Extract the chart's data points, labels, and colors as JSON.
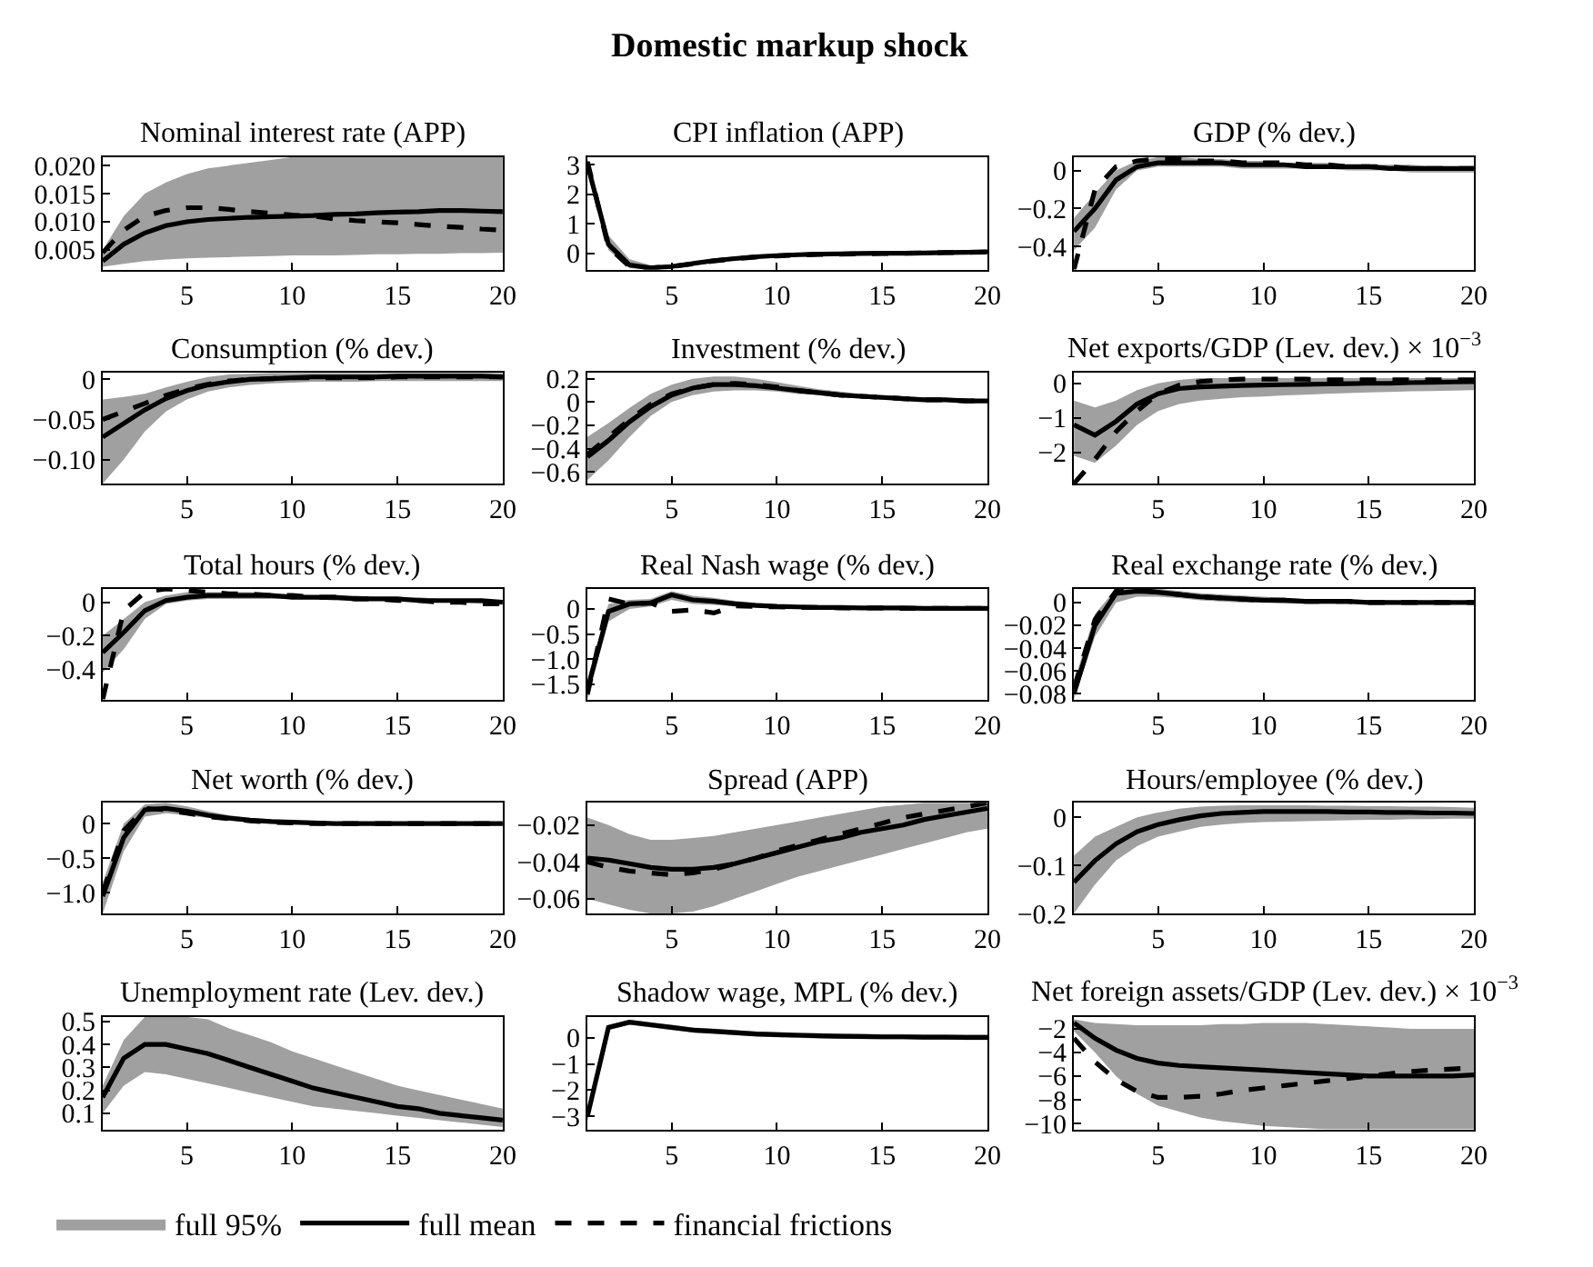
{
  "chart_data": [
    {
      "type": "line",
      "title": "Nominal interest rate (APP)",
      "annotations": [
        "Domestic markup shock"
      ],
      "x": [
        1,
        2,
        3,
        4,
        5,
        6,
        7,
        8,
        9,
        10,
        11,
        12,
        13,
        14,
        15,
        16,
        17,
        18,
        19,
        20
      ],
      "xlim": [
        1,
        20
      ],
      "xticks": [
        5,
        10,
        15,
        20
      ],
      "ylim": [
        0.0015,
        0.0215
      ],
      "yticks": [
        {
          "value": 0.005,
          "label": "0.005"
        },
        {
          "value": 0.01,
          "label": "0.010"
        },
        {
          "value": 0.015,
          "label": "0.015"
        },
        {
          "value": 0.02,
          "label": "0.020"
        }
      ],
      "series": [
        {
          "color": "#000000",
          "line_style": "solid",
          "values": [
            0.003,
            0.006,
            0.008,
            0.0093,
            0.01,
            0.0104,
            0.0106,
            0.0108,
            0.0109,
            0.011,
            0.0111,
            0.0113,
            0.0114,
            0.0116,
            0.0117,
            0.0118,
            0.012,
            0.012,
            0.0119,
            0.0118
          ],
          "lower": [
            0.002,
            0.0025,
            0.003,
            0.0033,
            0.0035,
            0.0036,
            0.0037,
            0.0038,
            0.0039,
            0.004,
            0.004,
            0.004,
            0.0041,
            0.0042,
            0.0042,
            0.0043,
            0.0043,
            0.0044,
            0.0044,
            0.0045
          ],
          "upper": [
            0.005,
            0.011,
            0.015,
            0.017,
            0.0185,
            0.0195,
            0.02,
            0.0205,
            0.021,
            0.0215,
            0.0215,
            0.0215,
            0.0215,
            0.0215,
            0.0215,
            0.0215,
            0.0215,
            0.0215,
            0.0215,
            0.0215
          ]
        },
        {
          "color": "#000000",
          "line_style": "dashed",
          "values": [
            0.0045,
            0.0085,
            0.011,
            0.012,
            0.0125,
            0.0125,
            0.0122,
            0.0118,
            0.0115,
            0.0112,
            0.011,
            0.0105,
            0.0102,
            0.01,
            0.0098,
            0.0095,
            0.0092,
            0.009,
            0.0087,
            0.0085
          ]
        }
      ]
    },
    {
      "type": "line",
      "title": "CPI inflation (APP)",
      "x": [
        1,
        2,
        3,
        4,
        5,
        6,
        7,
        8,
        9,
        10,
        11,
        12,
        13,
        14,
        15,
        16,
        17,
        18,
        19,
        20
      ],
      "xlim": [
        1,
        20
      ],
      "xticks": [
        5,
        10,
        15,
        20
      ],
      "ylim": [
        -0.55,
        3.25
      ],
      "yticks": [
        0,
        1,
        2,
        3
      ],
      "series": [
        {
          "color": "#000000",
          "line_style": "solid",
          "values": [
            3,
            0.3,
            -0.4,
            -0.5,
            -0.45,
            -0.35,
            -0.25,
            -0.18,
            -0.12,
            -0.08,
            -0.05,
            -0.03,
            -0.02,
            -0.01,
            0,
            0,
            0.01,
            0.02,
            0.03,
            0.05
          ],
          "lower": [
            2.8,
            0.1,
            -0.5,
            -0.55,
            -0.5,
            -0.42,
            -0.32,
            -0.25,
            -0.19,
            -0.15,
            -0.12,
            -0.1,
            -0.08,
            -0.07,
            -0.06,
            -0.05,
            -0.04,
            -0.03,
            -0.02,
            -0.01
          ],
          "upper": [
            3.2,
            0.6,
            -0.2,
            -0.4,
            -0.38,
            -0.28,
            -0.18,
            -0.11,
            -0.05,
            -0.01,
            0.02,
            0.04,
            0.05,
            0.06,
            0.07,
            0.07,
            0.08,
            0.09,
            0.1,
            0.1
          ]
        },
        {
          "color": "#000000",
          "line_style": "dashed",
          "values": [
            3.1,
            0.2,
            -0.45,
            -0.5,
            -0.45,
            -0.36,
            -0.26,
            -0.19,
            -0.13,
            -0.09,
            -0.06,
            -0.04,
            -0.03,
            -0.02,
            -0.01,
            0,
            0.01,
            0.02,
            0.03,
            0.04
          ]
        }
      ]
    },
    {
      "type": "line",
      "title": "GDP (% dev.)",
      "x": [
        1,
        2,
        3,
        4,
        5,
        6,
        7,
        8,
        9,
        10,
        11,
        12,
        13,
        14,
        15,
        16,
        17,
        18,
        19,
        20
      ],
      "xlim": [
        1,
        20
      ],
      "xticks": [
        5,
        10,
        15,
        20
      ],
      "ylim": [
        -0.52,
        0.07
      ],
      "yticks": [
        {
          "value": -0.4,
          "label": "−0.4"
        },
        {
          "value": -0.2,
          "label": "−0.2"
        },
        0
      ],
      "series": [
        {
          "color": "#000000",
          "line_style": "solid",
          "values": [
            -0.32,
            -0.2,
            -0.05,
            0.02,
            0.04,
            0.04,
            0.04,
            0.04,
            0.03,
            0.03,
            0.03,
            0.02,
            0.02,
            0.02,
            0.02,
            0.01,
            0.01,
            0.01,
            0.01,
            0.01
          ],
          "lower": [
            -0.42,
            -0.3,
            -0.1,
            0,
            0.02,
            0.02,
            0.02,
            0.02,
            0.01,
            0.01,
            0.01,
            0.01,
            0.01,
            0,
            0,
            0,
            -0.01,
            -0.01,
            -0.01,
            -0.01
          ],
          "upper": [
            -0.25,
            -0.12,
            0,
            0.05,
            0.07,
            0.07,
            0.06,
            0.06,
            0.05,
            0.05,
            0.04,
            0.04,
            0.04,
            0.03,
            0.03,
            0.03,
            0.03,
            0.02,
            0.02,
            0.02
          ]
        },
        {
          "color": "#000000",
          "line_style": "dashed",
          "values": [
            -0.52,
            -0.1,
            0.02,
            0.05,
            0.06,
            0.06,
            0.05,
            0.05,
            0.04,
            0.04,
            0.04,
            0.03,
            0.03,
            0.02,
            0.02,
            0.02,
            0.01,
            0.01,
            0.01,
            0.01
          ]
        }
      ]
    },
    {
      "type": "line",
      "title": "Consumption (% dev.)",
      "x": [
        1,
        2,
        3,
        4,
        5,
        6,
        7,
        8,
        9,
        10,
        11,
        12,
        13,
        14,
        15,
        16,
        17,
        18,
        19,
        20
      ],
      "xlim": [
        1,
        20
      ],
      "xticks": [
        5,
        10,
        15,
        20
      ],
      "ylim": [
        -0.13,
        0.008
      ],
      "yticks": [
        {
          "value": -0.1,
          "label": "−0.10"
        },
        {
          "value": -0.05,
          "label": "−0.05"
        },
        0
      ],
      "series": [
        {
          "color": "#000000",
          "line_style": "solid",
          "values": [
            -0.072,
            -0.055,
            -0.038,
            -0.024,
            -0.014,
            -0.007,
            -0.003,
            0,
            0.001,
            0.002,
            0.003,
            0.003,
            0.003,
            0.003,
            0.004,
            0.004,
            0.004,
            0.004,
            0.004,
            0.003
          ],
          "lower": [
            -0.13,
            -0.1,
            -0.065,
            -0.04,
            -0.025,
            -0.015,
            -0.01,
            -0.007,
            -0.005,
            -0.004,
            -0.003,
            -0.003,
            -0.003,
            -0.002,
            -0.002,
            -0.002,
            -0.002,
            -0.002,
            -0.002,
            -0.002
          ],
          "upper": [
            -0.025,
            -0.022,
            -0.018,
            -0.01,
            -0.003,
            0.003,
            0.006,
            0.007,
            0.008,
            0.008,
            0.008,
            0.008,
            0.008,
            0.008,
            0.008,
            0.008,
            0.008,
            0.008,
            0.008,
            0.008
          ]
        },
        {
          "color": "#000000",
          "line_style": "dashed",
          "values": [
            -0.05,
            -0.04,
            -0.03,
            -0.02,
            -0.012,
            -0.006,
            -0.002,
            0,
            0.001,
            0.002,
            0.002,
            0.002,
            0.002,
            0.002,
            0.003,
            0.003,
            0.003,
            0.003,
            0.003,
            0.003
          ]
        }
      ]
    },
    {
      "type": "line",
      "title": "Investment (% dev.)",
      "x": [
        1,
        2,
        3,
        4,
        5,
        6,
        7,
        8,
        9,
        10,
        11,
        12,
        13,
        14,
        15,
        16,
        17,
        18,
        19,
        20
      ],
      "xlim": [
        1,
        20
      ],
      "xticks": [
        5,
        10,
        15,
        20
      ],
      "ylim": [
        -0.7,
        0.25
      ],
      "yticks": [
        {
          "value": -0.6,
          "label": "−0.6"
        },
        {
          "value": -0.4,
          "label": "−0.4"
        },
        {
          "value": -0.2,
          "label": "−0.2"
        },
        0,
        0.2
      ],
      "series": [
        {
          "color": "#000000",
          "line_style": "solid",
          "values": [
            -0.47,
            -0.33,
            -0.17,
            -0.04,
            0.06,
            0.12,
            0.15,
            0.15,
            0.14,
            0.12,
            0.1,
            0.08,
            0.06,
            0.05,
            0.04,
            0.03,
            0.02,
            0.02,
            0.01,
            0.01
          ],
          "lower": [
            -0.67,
            -0.5,
            -0.3,
            -0.12,
            0,
            0.06,
            0.09,
            0.1,
            0.1,
            0.09,
            0.07,
            0.06,
            0.04,
            0.03,
            0.02,
            0.02,
            0.01,
            0.01,
            0,
            0
          ],
          "upper": [
            -0.3,
            -0.18,
            -0.05,
            0.07,
            0.15,
            0.2,
            0.22,
            0.22,
            0.2,
            0.17,
            0.14,
            0.11,
            0.09,
            0.07,
            0.06,
            0.05,
            0.04,
            0.03,
            0.03,
            0.02
          ]
        },
        {
          "color": "#000000",
          "line_style": "dashed",
          "values": [
            -0.45,
            -0.3,
            -0.15,
            -0.02,
            0.07,
            0.12,
            0.15,
            0.16,
            0.15,
            0.13,
            0.1,
            0.08,
            0.06,
            0.05,
            0.04,
            0.03,
            0.02,
            0.02,
            0.01,
            0.01
          ]
        }
      ]
    },
    {
      "type": "line",
      "title": "Net exports/GDP (Lev. dev.) × 10$^{−3}$",
      "x": [
        1,
        2,
        3,
        4,
        5,
        6,
        7,
        8,
        9,
        10,
        11,
        12,
        13,
        14,
        15,
        16,
        17,
        18,
        19,
        20
      ],
      "xlim": [
        1,
        20
      ],
      "xticks": [
        5,
        10,
        15,
        20
      ],
      "ylim": [
        -2.9,
        0.3
      ],
      "yticks": [
        {
          "value": -2,
          "label": "−2"
        },
        {
          "value": -1,
          "label": "−1"
        },
        0
      ],
      "series": [
        {
          "color": "#000000",
          "line_style": "solid",
          "values": [
            -1.2,
            -1.5,
            -1.1,
            -0.6,
            -0.3,
            -0.15,
            -0.1,
            -0.08,
            -0.06,
            -0.05,
            -0.04,
            -0.03,
            -0.02,
            -0.01,
            0,
            0,
            0.02,
            0.03,
            0.04,
            0.05
          ],
          "lower": [
            -2.1,
            -2.3,
            -1.8,
            -1.2,
            -0.8,
            -0.6,
            -0.5,
            -0.45,
            -0.4,
            -0.38,
            -0.35,
            -0.33,
            -0.3,
            -0.28,
            -0.26,
            -0.25,
            -0.23,
            -0.22,
            -0.21,
            -0.2
          ],
          "upper": [
            -0.5,
            -0.7,
            -0.5,
            -0.2,
            0,
            0.1,
            0.15,
            0.15,
            0.15,
            0.15,
            0.15,
            0.15,
            0.15,
            0.15,
            0.15,
            0.15,
            0.15,
            0.15,
            0.15,
            0.15
          ]
        },
        {
          "color": "#000000",
          "line_style": "dashed",
          "values": [
            -2.9,
            -2.2,
            -1.4,
            -0.8,
            -0.3,
            -0.05,
            0.05,
            0.1,
            0.12,
            0.12,
            0.12,
            0.12,
            0.1,
            0.1,
            0.1,
            0.1,
            0.1,
            0.1,
            0.1,
            0.1
          ]
        }
      ]
    },
    {
      "type": "line",
      "title": "Total hours (% dev.)",
      "x": [
        1,
        2,
        3,
        4,
        5,
        6,
        7,
        8,
        9,
        10,
        11,
        12,
        13,
        14,
        15,
        16,
        17,
        18,
        19,
        20
      ],
      "xlim": [
        1,
        20
      ],
      "xticks": [
        5,
        10,
        15,
        20
      ],
      "ylim": [
        -0.58,
        0.08
      ],
      "yticks": [
        {
          "value": -0.4,
          "label": "−0.4"
        },
        {
          "value": -0.2,
          "label": "−0.2"
        },
        0
      ],
      "series": [
        {
          "color": "#000000",
          "line_style": "solid",
          "values": [
            -0.3,
            -0.18,
            -0.05,
            0.01,
            0.03,
            0.04,
            0.04,
            0.04,
            0.04,
            0.03,
            0.03,
            0.03,
            0.02,
            0.02,
            0.02,
            0.01,
            0.01,
            0.01,
            0.01,
            0
          ],
          "lower": [
            -0.42,
            -0.28,
            -0.1,
            -0.01,
            0.01,
            0.02,
            0.02,
            0.02,
            0.02,
            0.02,
            0.02,
            0.01,
            0.01,
            0.01,
            0.01,
            0,
            0,
            0,
            -0.01,
            -0.01
          ],
          "upper": [
            -0.2,
            -0.1,
            0,
            0.04,
            0.06,
            0.06,
            0.06,
            0.06,
            0.05,
            0.05,
            0.04,
            0.04,
            0.04,
            0.03,
            0.03,
            0.03,
            0.02,
            0.02,
            0.02,
            0.01
          ]
        },
        {
          "color": "#000000",
          "line_style": "dashed",
          "values": [
            -0.58,
            -0.05,
            0.06,
            0.08,
            0.07,
            0.06,
            0.05,
            0.05,
            0.04,
            0.04,
            0.03,
            0.03,
            0.02,
            0.02,
            0.01,
            0.01,
            0,
            0,
            -0.01,
            -0.01
          ]
        }
      ]
    },
    {
      "type": "line",
      "title": "Real Nash wage (% dev.)",
      "x": [
        1,
        2,
        3,
        4,
        5,
        6,
        7,
        8,
        9,
        10,
        11,
        12,
        13,
        14,
        15,
        16,
        17,
        18,
        19,
        20
      ],
      "xlim": [
        1,
        20
      ],
      "xticks": [
        5,
        10,
        15,
        20
      ],
      "ylim": [
        -1.8,
        0.4
      ],
      "yticks": [
        {
          "value": -1.5,
          "label": "−1.5"
        },
        {
          "value": -1,
          "label": "−1.0"
        },
        {
          "value": -0.5,
          "label": "−0.5"
        },
        0
      ],
      "series": [
        {
          "color": "#000000",
          "line_style": "solid",
          "values": [
            -1.6,
            -0.05,
            0.1,
            0.12,
            0.28,
            0.18,
            0.15,
            0.1,
            0.07,
            0.05,
            0.04,
            0.03,
            0.03,
            0.02,
            0.02,
            0.02,
            0.01,
            0.01,
            0.01,
            0.01
          ],
          "lower": [
            -1.8,
            -0.25,
            0,
            0.05,
            0.18,
            0.1,
            0.08,
            0.05,
            0.03,
            0.02,
            0.01,
            0,
            0,
            0,
            0,
            0,
            -0.01,
            -0.01,
            -0.01,
            -0.01
          ],
          "upper": [
            -1.4,
            0.1,
            0.18,
            0.2,
            0.35,
            0.26,
            0.22,
            0.16,
            0.12,
            0.09,
            0.07,
            0.06,
            0.05,
            0.04,
            0.04,
            0.04,
            0.03,
            0.03,
            0.03,
            0.03
          ]
        },
        {
          "color": "#000000",
          "line_style": "dashed",
          "values": [
            -1.7,
            0.2,
            0.1,
            0.12,
            -0.05,
            -0.02,
            -0.08,
            0.06,
            0.05,
            0.04,
            0.03,
            0.03,
            0.02,
            0.02,
            0.02,
            0.01,
            0.01,
            0.01,
            0.01,
            0.01
          ]
        }
      ]
    },
    {
      "type": "line",
      "title": "Real exchange rate (% dev.)",
      "x": [
        1,
        2,
        3,
        4,
        5,
        6,
        7,
        8,
        9,
        10,
        11,
        12,
        13,
        14,
        15,
        16,
        17,
        18,
        19,
        20
      ],
      "xlim": [
        1,
        20
      ],
      "xticks": [
        5,
        10,
        15,
        20
      ],
      "ylim": [
        -0.085,
        0.012
      ],
      "yticks": [
        {
          "value": -0.08,
          "label": "−0.08"
        },
        {
          "value": -0.06,
          "label": "−0.06"
        },
        {
          "value": -0.04,
          "label": "−0.04"
        },
        {
          "value": -0.02,
          "label": "−0.02"
        },
        0
      ],
      "series": [
        {
          "color": "#000000",
          "line_style": "solid",
          "values": [
            -0.08,
            -0.02,
            0.008,
            0.01,
            0.009,
            0.007,
            0.005,
            0.004,
            0.003,
            0.002,
            0.002,
            0.001,
            0.001,
            0.001,
            0,
            0,
            0,
            0,
            0,
            0
          ],
          "lower": [
            -0.085,
            -0.03,
            0,
            0.005,
            0.005,
            0.004,
            0.002,
            0.001,
            0,
            0,
            -0.001,
            -0.001,
            -0.001,
            -0.001,
            -0.001,
            -0.001,
            -0.001,
            -0.001,
            -0.001,
            -0.001
          ],
          "upper": [
            -0.07,
            -0.01,
            0.012,
            0.012,
            0.012,
            0.01,
            0.008,
            0.007,
            0.006,
            0.005,
            0.004,
            0.003,
            0.003,
            0.002,
            0.002,
            0.002,
            0.001,
            0.001,
            0.001,
            0.001
          ]
        },
        {
          "color": "#000000",
          "line_style": "dashed",
          "values": [
            -0.075,
            -0.015,
            0.01,
            0.011,
            0.009,
            0.007,
            0.005,
            0.004,
            0.003,
            0.002,
            0.002,
            0.001,
            0.001,
            0.001,
            0,
            0,
            0,
            0,
            0,
            0
          ]
        }
      ]
    },
    {
      "type": "line",
      "title": "Net worth (% dev.)",
      "x": [
        1,
        2,
        3,
        4,
        5,
        6,
        7,
        8,
        9,
        10,
        11,
        12,
        13,
        14,
        15,
        16,
        17,
        18,
        19,
        20
      ],
      "xlim": [
        1,
        20
      ],
      "xticks": [
        5,
        10,
        15,
        20
      ],
      "ylim": [
        -1.3,
        0.3
      ],
      "yticks": [
        {
          "value": -1,
          "label": "−1.0"
        },
        {
          "value": -0.5,
          "label": "−0.5"
        },
        0
      ],
      "series": [
        {
          "color": "#000000",
          "line_style": "solid",
          "values": [
            -1.05,
            -0.2,
            0.2,
            0.22,
            0.18,
            0.12,
            0.08,
            0.05,
            0.03,
            0.02,
            0.01,
            0,
            0,
            0,
            0,
            0,
            0,
            0,
            0,
            0
          ],
          "lower": [
            -1.3,
            -0.4,
            0.1,
            0.15,
            0.12,
            0.08,
            0.05,
            0.02,
            0.01,
            0,
            -0.01,
            -0.02,
            -0.02,
            -0.02,
            -0.02,
            -0.02,
            -0.02,
            -0.02,
            -0.02,
            -0.02
          ],
          "upper": [
            -0.85,
            0,
            0.28,
            0.3,
            0.25,
            0.18,
            0.12,
            0.08,
            0.06,
            0.04,
            0.03,
            0.02,
            0.02,
            0.02,
            0.02,
            0.02,
            0.02,
            0.02,
            0.02,
            0.02
          ]
        },
        {
          "color": "#000000",
          "line_style": "dashed",
          "values": [
            -1,
            -0.1,
            0.22,
            0.2,
            0.15,
            0.1,
            0.07,
            0.04,
            0.02,
            0.01,
            0,
            0,
            0,
            0,
            0,
            0,
            0,
            0,
            0,
            0
          ]
        }
      ]
    },
    {
      "type": "line",
      "title": "Spread (APP)",
      "x": [
        1,
        2,
        3,
        4,
        5,
        6,
        7,
        8,
        9,
        10,
        11,
        12,
        13,
        14,
        15,
        16,
        17,
        18,
        19,
        20
      ],
      "xlim": [
        1,
        20
      ],
      "xticks": [
        5,
        10,
        15,
        20
      ],
      "ylim": [
        -0.068,
        -0.008
      ],
      "yticks": [
        {
          "value": -0.06,
          "label": "−0.06"
        },
        {
          "value": -0.04,
          "label": "−0.04"
        },
        {
          "value": -0.02,
          "label": "−0.02"
        }
      ],
      "series": [
        {
          "color": "#000000",
          "line_style": "solid",
          "values": [
            -0.038,
            -0.039,
            -0.041,
            -0.043,
            -0.044,
            -0.044,
            -0.043,
            -0.041,
            -0.038,
            -0.035,
            -0.032,
            -0.029,
            -0.027,
            -0.024,
            -0.022,
            -0.02,
            -0.017,
            -0.015,
            -0.013,
            -0.011
          ],
          "lower": [
            -0.06,
            -0.063,
            -0.066,
            -0.068,
            -0.068,
            -0.067,
            -0.064,
            -0.06,
            -0.056,
            -0.052,
            -0.048,
            -0.045,
            -0.042,
            -0.039,
            -0.036,
            -0.033,
            -0.03,
            -0.027,
            -0.024,
            -0.022
          ],
          "upper": [
            -0.016,
            -0.02,
            -0.025,
            -0.028,
            -0.028,
            -0.027,
            -0.026,
            -0.024,
            -0.022,
            -0.02,
            -0.018,
            -0.016,
            -0.014,
            -0.012,
            -0.01,
            -0.009,
            -0.008,
            -0.008,
            -0.008,
            -0.008
          ]
        },
        {
          "color": "#000000",
          "line_style": "dashed",
          "values": [
            -0.04,
            -0.043,
            -0.045,
            -0.046,
            -0.047,
            -0.046,
            -0.044,
            -0.041,
            -0.038,
            -0.034,
            -0.031,
            -0.028,
            -0.025,
            -0.022,
            -0.019,
            -0.016,
            -0.014,
            -0.012,
            -0.01,
            -0.008
          ]
        }
      ]
    },
    {
      "type": "line",
      "title": "Hours/employee (% dev.)",
      "x": [
        1,
        2,
        3,
        4,
        5,
        6,
        7,
        8,
        9,
        10,
        11,
        12,
        13,
        14,
        15,
        16,
        17,
        18,
        19,
        20
      ],
      "xlim": [
        1,
        20
      ],
      "xticks": [
        5,
        10,
        15,
        20
      ],
      "ylim": [
        -0.2,
        0.03
      ],
      "yticks": [
        {
          "value": -0.2,
          "label": "−0.2"
        },
        {
          "value": -0.1,
          "label": "−0.1"
        },
        0
      ],
      "series": [
        {
          "color": "#000000",
          "line_style": "solid",
          "values": [
            -0.135,
            -0.09,
            -0.055,
            -0.03,
            -0.015,
            -0.005,
            0.003,
            0.008,
            0.01,
            0.012,
            0.012,
            0.012,
            0.012,
            0.011,
            0.011,
            0.01,
            0.01,
            0.009,
            0.009,
            0.008
          ],
          "lower": [
            -0.2,
            -0.14,
            -0.09,
            -0.06,
            -0.04,
            -0.03,
            -0.02,
            -0.015,
            -0.012,
            -0.01,
            -0.009,
            -0.008,
            -0.007,
            -0.006,
            -0.005,
            -0.005,
            -0.004,
            -0.004,
            -0.003,
            -0.003
          ],
          "upper": [
            -0.08,
            -0.04,
            -0.02,
            0,
            0.01,
            0.018,
            0.022,
            0.024,
            0.025,
            0.025,
            0.025,
            0.025,
            0.024,
            0.024,
            0.023,
            0.023,
            0.022,
            0.022,
            0.021,
            0.02
          ]
        }
      ]
    },
    {
      "type": "line",
      "title": "Unemployment rate (Lev. dev.)",
      "x": [
        1,
        2,
        3,
        4,
        5,
        6,
        7,
        8,
        9,
        10,
        11,
        12,
        13,
        14,
        15,
        16,
        17,
        18,
        19,
        20
      ],
      "xlim": [
        1,
        20
      ],
      "xticks": [
        5,
        10,
        15,
        20
      ],
      "ylim": [
        0.03,
        0.52
      ],
      "yticks": [
        0.1,
        0.2,
        0.3,
        0.4,
        0.5
      ],
      "series": [
        {
          "color": "#000000",
          "line_style": "solid",
          "values": [
            0.17,
            0.34,
            0.4,
            0.4,
            0.38,
            0.36,
            0.33,
            0.3,
            0.27,
            0.24,
            0.21,
            0.19,
            0.17,
            0.15,
            0.13,
            0.12,
            0.1,
            0.09,
            0.08,
            0.07
          ],
          "lower": [
            0.1,
            0.22,
            0.28,
            0.27,
            0.25,
            0.23,
            0.21,
            0.19,
            0.17,
            0.15,
            0.13,
            0.12,
            0.11,
            0.1,
            0.09,
            0.08,
            0.07,
            0.06,
            0.05,
            0.04
          ],
          "upper": [
            0.22,
            0.42,
            0.52,
            0.52,
            0.52,
            0.51,
            0.47,
            0.44,
            0.41,
            0.37,
            0.34,
            0.31,
            0.28,
            0.25,
            0.22,
            0.2,
            0.18,
            0.16,
            0.14,
            0.12
          ]
        }
      ]
    },
    {
      "type": "line",
      "title": "Shadow wage, MPL (% dev.)",
      "x": [
        1,
        2,
        3,
        4,
        5,
        6,
        7,
        8,
        9,
        10,
        11,
        12,
        13,
        14,
        15,
        16,
        17,
        18,
        19,
        20
      ],
      "xlim": [
        1,
        20
      ],
      "xticks": [
        5,
        10,
        15,
        20
      ],
      "ylim": [
        -3.5,
        0.8
      ],
      "yticks": [
        {
          "value": -3,
          "label": "−3"
        },
        {
          "value": -2,
          "label": "−2"
        },
        {
          "value": -1,
          "label": "−1"
        },
        0
      ],
      "series": [
        {
          "color": "#000000",
          "line_style": "solid",
          "values": [
            -3,
            0.4,
            0.6,
            0.5,
            0.4,
            0.3,
            0.25,
            0.2,
            0.15,
            0.12,
            0.1,
            0.08,
            0.06,
            0.05,
            0.04,
            0.04,
            0.03,
            0.03,
            0.02,
            0.02
          ],
          "lower": [
            -3.2,
            0.3,
            0.5,
            0.4,
            0.3,
            0.2,
            0.15,
            0.1,
            0.05,
            0.02,
            0,
            -0.02,
            -0.04,
            -0.05,
            -0.06,
            -0.06,
            -0.07,
            -0.07,
            -0.08,
            -0.08
          ],
          "upper": [
            -2.8,
            0.5,
            0.7,
            0.6,
            0.5,
            0.4,
            0.35,
            0.3,
            0.25,
            0.22,
            0.2,
            0.18,
            0.16,
            0.15,
            0.14,
            0.14,
            0.13,
            0.13,
            0.12,
            0.12
          ]
        }
      ]
    },
    {
      "type": "line",
      "title": "Net foreign assets/GDP (Lev. dev.) × 10$^{−3}$",
      "legend": "bottom",
      "annotations": [
        "full 95%"
      ],
      "x": [
        1,
        2,
        3,
        4,
        5,
        6,
        7,
        8,
        9,
        10,
        11,
        12,
        13,
        14,
        15,
        16,
        17,
        18,
        19,
        20
      ],
      "xlim": [
        1,
        20
      ],
      "xticks": [
        5,
        10,
        15,
        20
      ],
      "ylim": [
        -10.5,
        -1
      ],
      "yticks": [
        {
          "value": -10,
          "label": "−10"
        },
        {
          "value": -8,
          "label": "−8"
        },
        {
          "value": -6,
          "label": "−6"
        },
        {
          "value": -4,
          "label": "−4"
        },
        {
          "value": -2,
          "label": "−2"
        }
      ],
      "series": [
        {
          "name": "full mean",
          "color": "#000000",
          "line_style": "solid",
          "values": [
            -1.5,
            -2.8,
            -3.8,
            -4.5,
            -4.9,
            -5.1,
            -5.2,
            -5.3,
            -5.4,
            -5.5,
            -5.6,
            -5.7,
            -5.8,
            -5.9,
            -6,
            -6,
            -6,
            -6,
            -6,
            -5.9
          ],
          "lower": [
            -2.2,
            -4,
            -6,
            -7.5,
            -8.5,
            -9,
            -9.5,
            -9.8,
            -10,
            -10.2,
            -10.3,
            -10.4,
            -10.5,
            -10.5,
            -10.5,
            -10.5,
            -10.5,
            -10.5,
            -10.5,
            -10.5
          ],
          "upper": [
            -1.2,
            -1.5,
            -1.6,
            -1.7,
            -1.7,
            -1.7,
            -1.7,
            -1.6,
            -1.6,
            -1.5,
            -1.5,
            -1.5,
            -1.6,
            -1.7,
            -1.8,
            -1.9,
            -2,
            -2,
            -2,
            -2
          ]
        },
        {
          "name": "financial frictions",
          "color": "#000000",
          "line_style": "dashed",
          "values": [
            -2.8,
            -4.8,
            -6.3,
            -7.3,
            -7.8,
            -7.8,
            -7.7,
            -7.5,
            -7.2,
            -7,
            -6.8,
            -6.6,
            -6.4,
            -6.2,
            -6,
            -5.8,
            -5.6,
            -5.5,
            -5.4,
            -5.3
          ]
        }
      ]
    }
  ]
}
